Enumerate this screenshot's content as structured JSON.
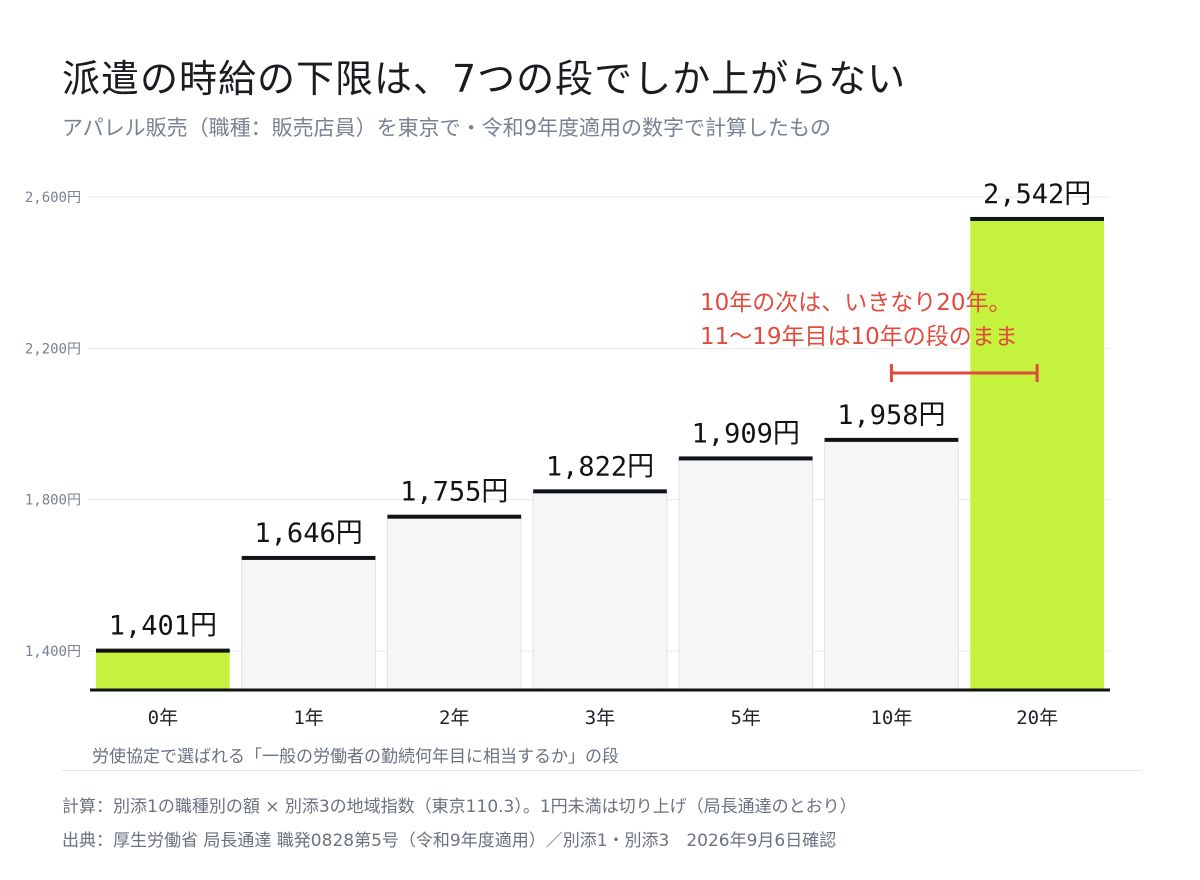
{
  "title": "派遣の時給の下限は、7つの段でしか上がらない",
  "subtitle": "アパレル販売（職種：販売店員）を東京で・令和9年度適用の数字で計算したもの",
  "x_caption": "労使協定で選ばれる「一般の労働者の勤続何年目に相当するか」の段",
  "footnotes": {
    "calc": "計算：別添1の職種別の額 × 別添3の地域指数（東京110.3）。1円未満は切り上げ（局長通達のとおり）",
    "source": "出典：厚生労働省 局長通達 職発0828第5号（令和9年度適用）／別添1・別添3　2026年9月6日確認"
  },
  "chart_data": {
    "type": "bar",
    "categories": [
      "0年",
      "1年",
      "2年",
      "3年",
      "5年",
      "10年",
      "20年"
    ],
    "values": [
      1401,
      1646,
      1755,
      1822,
      1909,
      1958,
      2542
    ],
    "value_labels": [
      "1,401円",
      "1,646円",
      "1,755円",
      "1,822円",
      "1,909円",
      "1,958円",
      "2,542円"
    ],
    "highlighted": [
      "0年",
      "20年"
    ],
    "ylim": [
      1300,
      2650
    ],
    "yticks": [
      1400,
      1800,
      2200,
      2600
    ],
    "ytick_labels": [
      "1,400円",
      "1,800円",
      "2,200円",
      "2,600円"
    ],
    "grid": true,
    "annotation": {
      "lines": [
        "10年の次は、いきなり20年。",
        "11〜19年目は10年の段のまま"
      ],
      "from": "10年",
      "to": "20年"
    }
  },
  "colors": {
    "highlight_fill": "#c5f23c",
    "bar_fill": "#f5f6f8",
    "bar_stroke": "#dfe2e6",
    "cap": "#111317",
    "annotation": "#e04b3e",
    "axis_text": "#7a8291"
  }
}
